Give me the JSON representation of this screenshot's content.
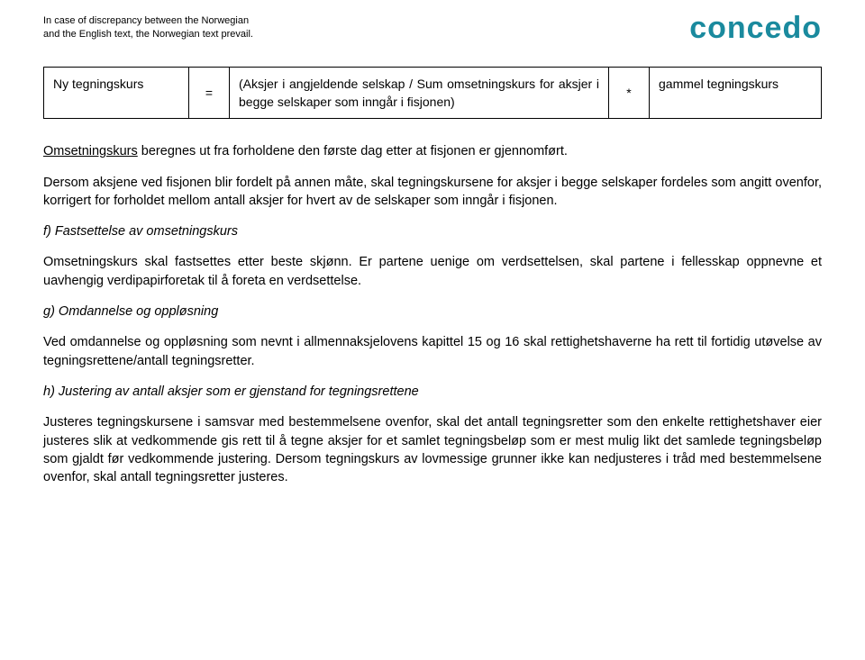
{
  "header": {
    "line1": "In case of discrepancy between the Norwegian",
    "line2": "and the English text, the Norwegian text prevail."
  },
  "logo": {
    "text": "concedo",
    "color": "#1a8a9e"
  },
  "table": {
    "c1": "Ny tegningskurs",
    "c2": "=",
    "c3": "(Aksjer i angjeldende selskap / Sum omsetningskurs for aksjer i begge selskaper som inngår i fisjonen)",
    "c4": "*",
    "c5": "gammel tegningskurs"
  },
  "paragraphs": {
    "p1a": "Omsetningskurs",
    "p1b": " beregnes ut fra forholdene den første dag etter at fisjonen er gjennomført.",
    "p2": "Dersom aksjene ved fisjonen blir fordelt på annen måte, skal tegningskursene for aksjer i begge selskaper fordeles som angitt ovenfor, korrigert for forholdet mellom antall aksjer for hvert av de selskaper som inngår i fisjonen.",
    "h3": "f) Fastsettelse av omsetningskurs",
    "p3": "Omsetningskurs skal fastsettes etter beste skjønn. Er partene uenige om verdsettelsen, skal partene i fellesskap oppnevne et uavhengig verdipapirforetak til å foreta en verdsettelse.",
    "h4": "g) Omdannelse og oppløsning",
    "p4": "Ved omdannelse og oppløsning som nevnt i allmennaksjelovens kapittel 15 og 16 skal rettighetshaverne ha rett til fortidig utøvelse av tegningsrettene/antall tegningsretter.",
    "h5": "h) Justering av antall aksjer som er gjenstand for tegningsrettene",
    "p5": "Justeres tegningskursene i samsvar med bestemmelsene ovenfor, skal det antall tegningsretter som den enkelte rettighetshaver eier justeres slik at vedkommende gis rett til å tegne aksjer for et samlet tegningsbeløp som er mest mulig likt det samlede tegningsbeløp som gjaldt før vedkommende justering. Dersom tegningskurs av lovmessige grunner ikke kan nedjusteres i tråd med bestemmelsene ovenfor, skal antall tegningsretter justeres."
  }
}
